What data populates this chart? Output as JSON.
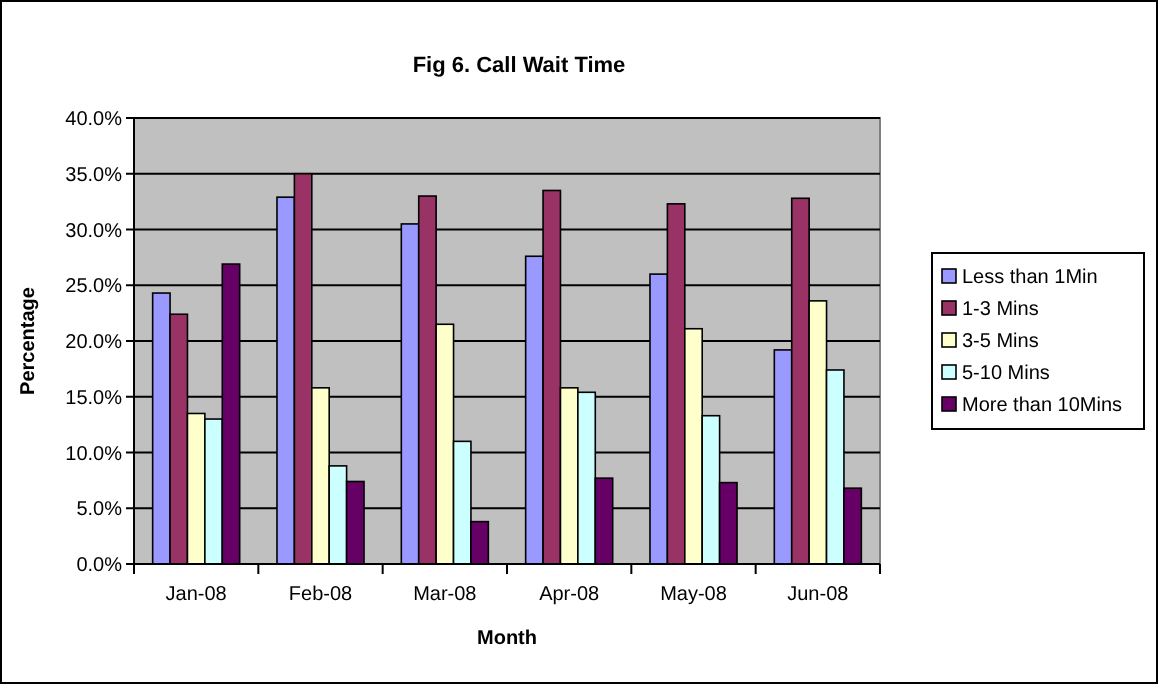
{
  "chart_data": {
    "type": "bar",
    "title": "Fig 6. Call Wait Time",
    "xlabel": "Month",
    "ylabel": "Percentage",
    "categories": [
      "Jan-08",
      "Feb-08",
      "Mar-08",
      "Apr-08",
      "May-08",
      "Jun-08"
    ],
    "series": [
      {
        "name": "Less than 1Min",
        "color": "#9999ff",
        "values": [
          24.3,
          32.9,
          30.5,
          27.6,
          26.0,
          19.2
        ]
      },
      {
        "name": "1-3 Mins",
        "color": "#993366",
        "values": [
          22.4,
          35.0,
          33.0,
          33.5,
          32.3,
          32.8
        ]
      },
      {
        "name": "3-5 Mins",
        "color": "#ffffcc",
        "values": [
          13.5,
          15.8,
          21.5,
          15.8,
          21.1,
          23.6
        ]
      },
      {
        "name": "5-10 Mins",
        "color": "#ccffff",
        "values": [
          13.0,
          8.8,
          11.0,
          15.4,
          13.3,
          17.4
        ]
      },
      {
        "name": "More than 10Mins",
        "color": "#660066",
        "values": [
          26.9,
          7.4,
          3.8,
          7.7,
          7.3,
          6.8
        ]
      }
    ],
    "ylim": [
      0,
      40
    ],
    "yticks": [
      {
        "value": 0,
        "label": "0.0%"
      },
      {
        "value": 5,
        "label": "5.0%"
      },
      {
        "value": 10,
        "label": "10.0%"
      },
      {
        "value": 15,
        "label": "15.0%"
      },
      {
        "value": 20,
        "label": "20.0%"
      },
      {
        "value": 25,
        "label": "25.0%"
      },
      {
        "value": 30,
        "label": "30.0%"
      },
      {
        "value": 35,
        "label": "35.0%"
      },
      {
        "value": 40,
        "label": "40.0%"
      }
    ],
    "grid": "y",
    "legend": "right"
  }
}
